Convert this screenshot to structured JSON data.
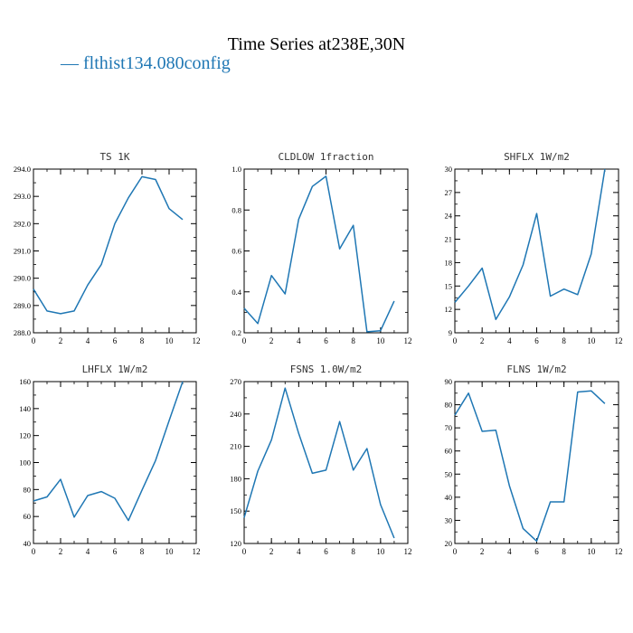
{
  "figure": {
    "title": "Time Series at238E,30N",
    "legend_label": "— flthist134.080config",
    "line_color": "#1f77b4"
  },
  "chart_data": [
    {
      "type": "line",
      "title": "TS   1K",
      "x": [
        0,
        1,
        2,
        3,
        4,
        5,
        6,
        7,
        8,
        9,
        10,
        11
      ],
      "values": [
        289.6,
        288.8,
        288.7,
        288.8,
        289.75,
        290.5,
        292.0,
        292.95,
        293.72,
        293.62,
        292.55,
        292.15
      ],
      "xlim": [
        0,
        12
      ],
      "ylim": [
        288.0,
        294.0
      ],
      "xticks": [
        "0",
        "2",
        "4",
        "6",
        "8",
        "10",
        "12"
      ],
      "yticks": [
        "288.0",
        "289.0",
        "290.0",
        "291.0",
        "292.0",
        "293.0",
        "294.0"
      ]
    },
    {
      "type": "line",
      "title": "CLDLOW   1fraction",
      "x": [
        0,
        1,
        2,
        3,
        4,
        5,
        6,
        7,
        8,
        9,
        10,
        11
      ],
      "values": [
        0.32,
        0.245,
        0.48,
        0.39,
        0.755,
        0.915,
        0.965,
        0.61,
        0.725,
        0.205,
        0.21,
        0.355
      ],
      "xlim": [
        0,
        12
      ],
      "ylim": [
        0.2,
        1.0
      ],
      "xticks": [
        "0",
        "2",
        "4",
        "6",
        "8",
        "10",
        "12"
      ],
      "yticks": [
        "0.2",
        "0.4",
        "0.6",
        "0.8",
        "1.0"
      ]
    },
    {
      "type": "line",
      "title": "SHFLX   1W/m2",
      "x": [
        0,
        1,
        2,
        3,
        4,
        5,
        6,
        7,
        8,
        9,
        10,
        11
      ],
      "values": [
        12.9,
        15.0,
        17.3,
        10.7,
        13.6,
        17.7,
        24.3,
        13.7,
        14.6,
        13.9,
        19.1,
        30.0
      ],
      "xlim": [
        0,
        12
      ],
      "ylim": [
        9,
        30
      ],
      "xticks": [
        "0",
        "2",
        "4",
        "6",
        "8",
        "10",
        "12"
      ],
      "yticks": [
        "9",
        "12",
        "15",
        "18",
        "21",
        "24",
        "27",
        "30"
      ]
    },
    {
      "type": "line",
      "title": "LHFLX   1W/m2",
      "x": [
        0,
        1,
        2,
        3,
        4,
        5,
        6,
        7,
        8,
        9,
        10,
        11
      ],
      "values": [
        71.5,
        74.5,
        87.5,
        59.5,
        75.5,
        78.5,
        73.5,
        57.0,
        79.5,
        101.5,
        131.0,
        160.0
      ],
      "xlim": [
        0,
        12
      ],
      "ylim": [
        40,
        160
      ],
      "xticks": [
        "0",
        "2",
        "4",
        "6",
        "8",
        "10",
        "12"
      ],
      "yticks": [
        "40",
        "60",
        "80",
        "100",
        "120",
        "140",
        "160"
      ]
    },
    {
      "type": "line",
      "title": "FSNS   1.0W/m2",
      "x": [
        0,
        1,
        2,
        3,
        4,
        5,
        6,
        7,
        8,
        9,
        10,
        11
      ],
      "values": [
        144,
        187,
        216,
        264,
        222,
        185,
        188,
        233,
        188,
        208,
        156,
        125
      ],
      "xlim": [
        0,
        12
      ],
      "ylim": [
        120,
        270
      ],
      "xticks": [
        "0",
        "2",
        "4",
        "6",
        "8",
        "10",
        "12"
      ],
      "yticks": [
        "120",
        "150",
        "180",
        "210",
        "240",
        "270"
      ]
    },
    {
      "type": "line",
      "title": "FLNS   1W/m2",
      "x": [
        0,
        1,
        2,
        3,
        4,
        5,
        6,
        7,
        8,
        9,
        10,
        11
      ],
      "values": [
        75.5,
        85.0,
        68.5,
        69.0,
        45.0,
        26.5,
        21.0,
        38.0,
        38.0,
        85.5,
        86.0,
        80.5
      ],
      "xlim": [
        0,
        12
      ],
      "ylim": [
        20,
        90
      ],
      "xticks": [
        "0",
        "2",
        "4",
        "6",
        "8",
        "10",
        "12"
      ],
      "yticks": [
        "20",
        "30",
        "40",
        "50",
        "60",
        "70",
        "80",
        "90"
      ]
    }
  ]
}
